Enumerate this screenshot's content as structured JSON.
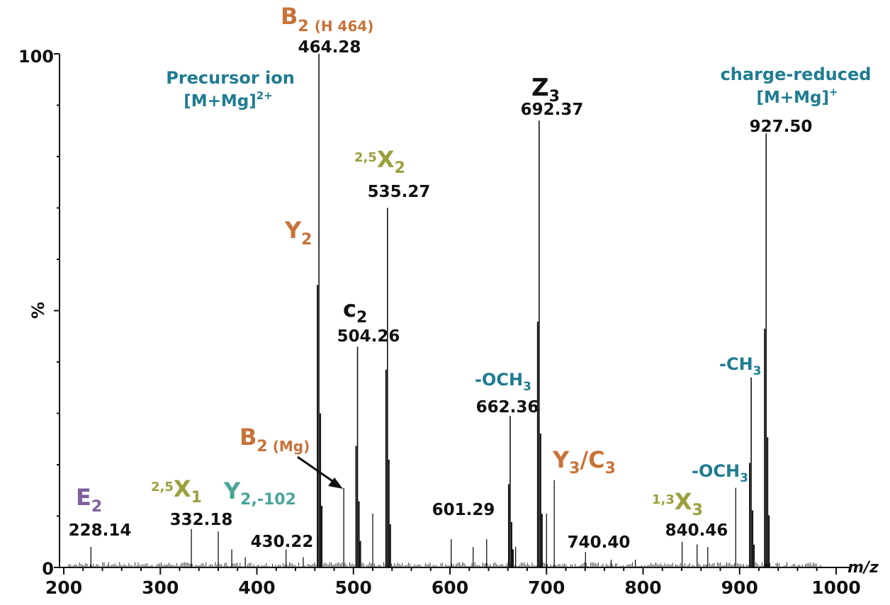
{
  "colors": {
    "black": "#111111",
    "orange": "#c8733a",
    "olive": "#9aa03a",
    "teal": "#1f7c91",
    "purple": "#7f5f9e",
    "teal_green": "#4aa59a"
  },
  "chart_data": {
    "type": "bar",
    "xlabel": "m/z",
    "ylabel": "%",
    "xlim": [
      200,
      1000
    ],
    "ylim": [
      0,
      100
    ],
    "x_ticks": [
      200,
      300,
      400,
      500,
      600,
      700,
      800,
      900,
      1000
    ],
    "y_ticks": [
      0,
      100
    ],
    "y_mid_tick": 50,
    "grid": false,
    "peaks": [
      {
        "mz": 228.14,
        "intensity": 4
      },
      {
        "mz": 332.18,
        "intensity": 7.5
      },
      {
        "mz": 360.0,
        "intensity": 7
      },
      {
        "mz": 374.0,
        "intensity": 3.5
      },
      {
        "mz": 388.0,
        "intensity": 2
      },
      {
        "mz": 430.22,
        "intensity": 3.5
      },
      {
        "mz": 448.0,
        "intensity": 2
      },
      {
        "mz": 464.28,
        "intensity": 100
      },
      {
        "mz": 490.0,
        "intensity": 15.5
      },
      {
        "mz": 504.26,
        "intensity": 43
      },
      {
        "mz": 520.0,
        "intensity": 10.5
      },
      {
        "mz": 535.27,
        "intensity": 70
      },
      {
        "mz": 601.29,
        "intensity": 5.5
      },
      {
        "mz": 624.0,
        "intensity": 4
      },
      {
        "mz": 638.0,
        "intensity": 5.5
      },
      {
        "mz": 662.36,
        "intensity": 29.5
      },
      {
        "mz": 668.0,
        "intensity": 4
      },
      {
        "mz": 692.37,
        "intensity": 87
      },
      {
        "mz": 700.0,
        "intensity": 10.5
      },
      {
        "mz": 708.0,
        "intensity": 17
      },
      {
        "mz": 740.4,
        "intensity": 3
      },
      {
        "mz": 767.0,
        "intensity": 1.5
      },
      {
        "mz": 792.0,
        "intensity": 1.5
      },
      {
        "mz": 840.46,
        "intensity": 5
      },
      {
        "mz": 856.0,
        "intensity": 4.5
      },
      {
        "mz": 867.0,
        "intensity": 4
      },
      {
        "mz": 896.0,
        "intensity": 15.5
      },
      {
        "mz": 912.0,
        "intensity": 37
      },
      {
        "mz": 927.5,
        "intensity": 84.5
      }
    ],
    "mass_labels": [
      "228.14",
      "332.18",
      "430.22",
      "464.28",
      "504.26",
      "535.27",
      "601.29",
      "662.36",
      "692.37",
      "740.40",
      "840.46",
      "927.50"
    ]
  },
  "annotations": {
    "b2_h464": {
      "main": "B",
      "sub": "2",
      "extra": "(H 464)"
    },
    "precursor_line1": "Precursor ion",
    "precursor_line2": "[M+Mg]",
    "precursor_sup": "2+",
    "z3": {
      "main": "Z",
      "sub": "3"
    },
    "charge_reduced_line1": "charge-reduced",
    "charge_reduced_line2": "[M+Mg]",
    "charge_reduced_sup": "+",
    "x25_2": {
      "sup": "2,5",
      "main": "X",
      "sub": "2"
    },
    "y2": {
      "main": "Y",
      "sub": "2"
    },
    "c2": {
      "main": "c",
      "sub": "2"
    },
    "och3_662": {
      "main": "-OCH",
      "sub": "3"
    },
    "ch3_912": {
      "main": "-CH",
      "sub": "3"
    },
    "b2_mg": {
      "main": "B",
      "sub": "2",
      "extra": "(Mg)"
    },
    "y3_c3": {
      "main1": "Y",
      "sub1": "3",
      "slash": "/",
      "main2": "C",
      "sub2": "3"
    },
    "och3_896": {
      "main": "-OCH",
      "sub": "3"
    },
    "e2": {
      "main": "E",
      "sub": "2"
    },
    "x25_1": {
      "sup": "2,5",
      "main": "X",
      "sub": "1"
    },
    "y2_102": {
      "main": "Y",
      "sub": "2,-102"
    },
    "x13_3": {
      "sup": "1,3",
      "main": "X",
      "sub": "3"
    }
  }
}
